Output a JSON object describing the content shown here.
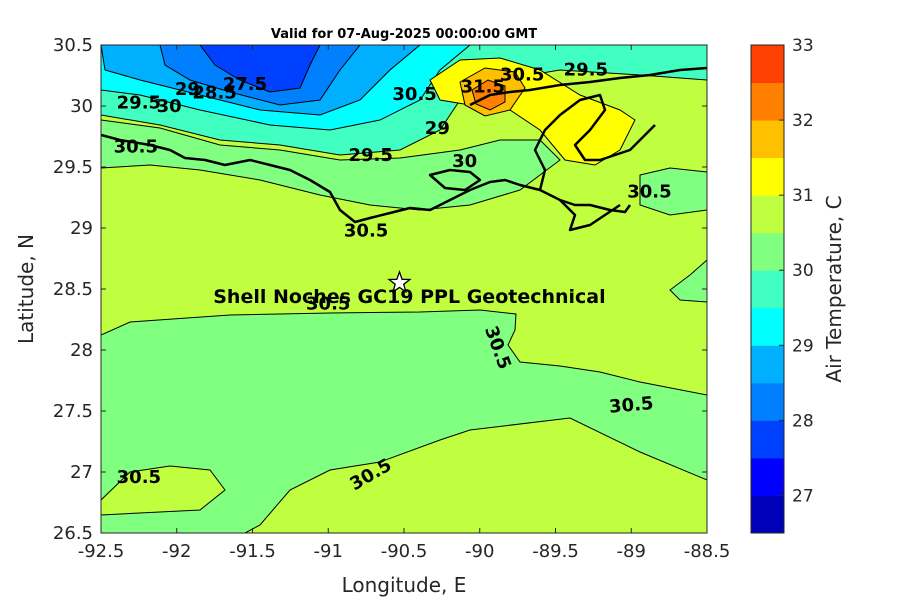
{
  "chart_data": {
    "type": "heatmap",
    "title": "Valid for 07-Aug-2025 00:00:00 GMT",
    "xlabel": "Longitude, E",
    "ylabel": "Latitude, N",
    "xlim": [
      -92.5,
      -88.5
    ],
    "ylim": [
      26.5,
      30.5
    ],
    "xticks": [
      "-92.5",
      "-92",
      "-91.5",
      "-91",
      "-90.5",
      "-90",
      "-89.5",
      "-89",
      "-88.5"
    ],
    "yticks": [
      "26.5",
      "27",
      "27.5",
      "28",
      "28.5",
      "29",
      "29.5",
      "30",
      "30.5"
    ],
    "colorbar": {
      "label": "Air Temperature, C",
      "range": [
        26.5,
        33
      ],
      "ticks": [
        "27",
        "28",
        "29",
        "30",
        "31",
        "32",
        "33"
      ],
      "colors": [
        "#0000B8",
        "#0000FF",
        "#0040FF",
        "#0080FF",
        "#00B0FF",
        "#00FFFF",
        "#40FFC0",
        "#80FF80",
        "#C0FF40",
        "#FFFF00",
        "#FFC000",
        "#FF8000",
        "#FF4000"
      ]
    },
    "contour_labels": [
      {
        "text": "30.5",
        "lon": -91.0,
        "lat": 28.38
      },
      {
        "text": "30.5",
        "lon": -89.88,
        "lat": 28.02,
        "rotate": 70
      },
      {
        "text": "30.5",
        "lon": -89.0,
        "lat": 27.55,
        "rotate": -5
      },
      {
        "text": "30.5",
        "lon": -92.25,
        "lat": 26.96
      },
      {
        "text": "30.5",
        "lon": -90.72,
        "lat": 26.98,
        "rotate": -30
      },
      {
        "text": "30.5",
        "lon": -88.88,
        "lat": 29.3
      },
      {
        "text": "30.5",
        "lon": -92.27,
        "lat": 29.67
      },
      {
        "text": "30.5",
        "lon": -90.75,
        "lat": 28.98
      },
      {
        "text": "29.5",
        "lon": -92.25,
        "lat": 30.03
      },
      {
        "text": "30",
        "lon": -92.05,
        "lat": 30.0
      },
      {
        "text": "29",
        "lon": -91.93,
        "lat": 30.14
      },
      {
        "text": "28.5",
        "lon": -91.75,
        "lat": 30.11
      },
      {
        "text": "27.5",
        "lon": -91.55,
        "lat": 30.18
      },
      {
        "text": "30.5",
        "lon": -90.43,
        "lat": 30.1
      },
      {
        "text": "29",
        "lon": -90.28,
        "lat": 29.82
      },
      {
        "text": "29.5",
        "lon": -90.72,
        "lat": 29.6
      },
      {
        "text": "30",
        "lon": -90.1,
        "lat": 29.55
      },
      {
        "text": "31.5",
        "lon": -89.98,
        "lat": 30.16
      },
      {
        "text": "30.5",
        "lon": -89.72,
        "lat": 30.26
      },
      {
        "text": "29.5",
        "lon": -89.3,
        "lat": 30.3
      }
    ],
    "station": {
      "lon": -90.53,
      "lat": 28.55,
      "label": "Shell Noches   GC19 PPL  Geotechnical"
    }
  }
}
